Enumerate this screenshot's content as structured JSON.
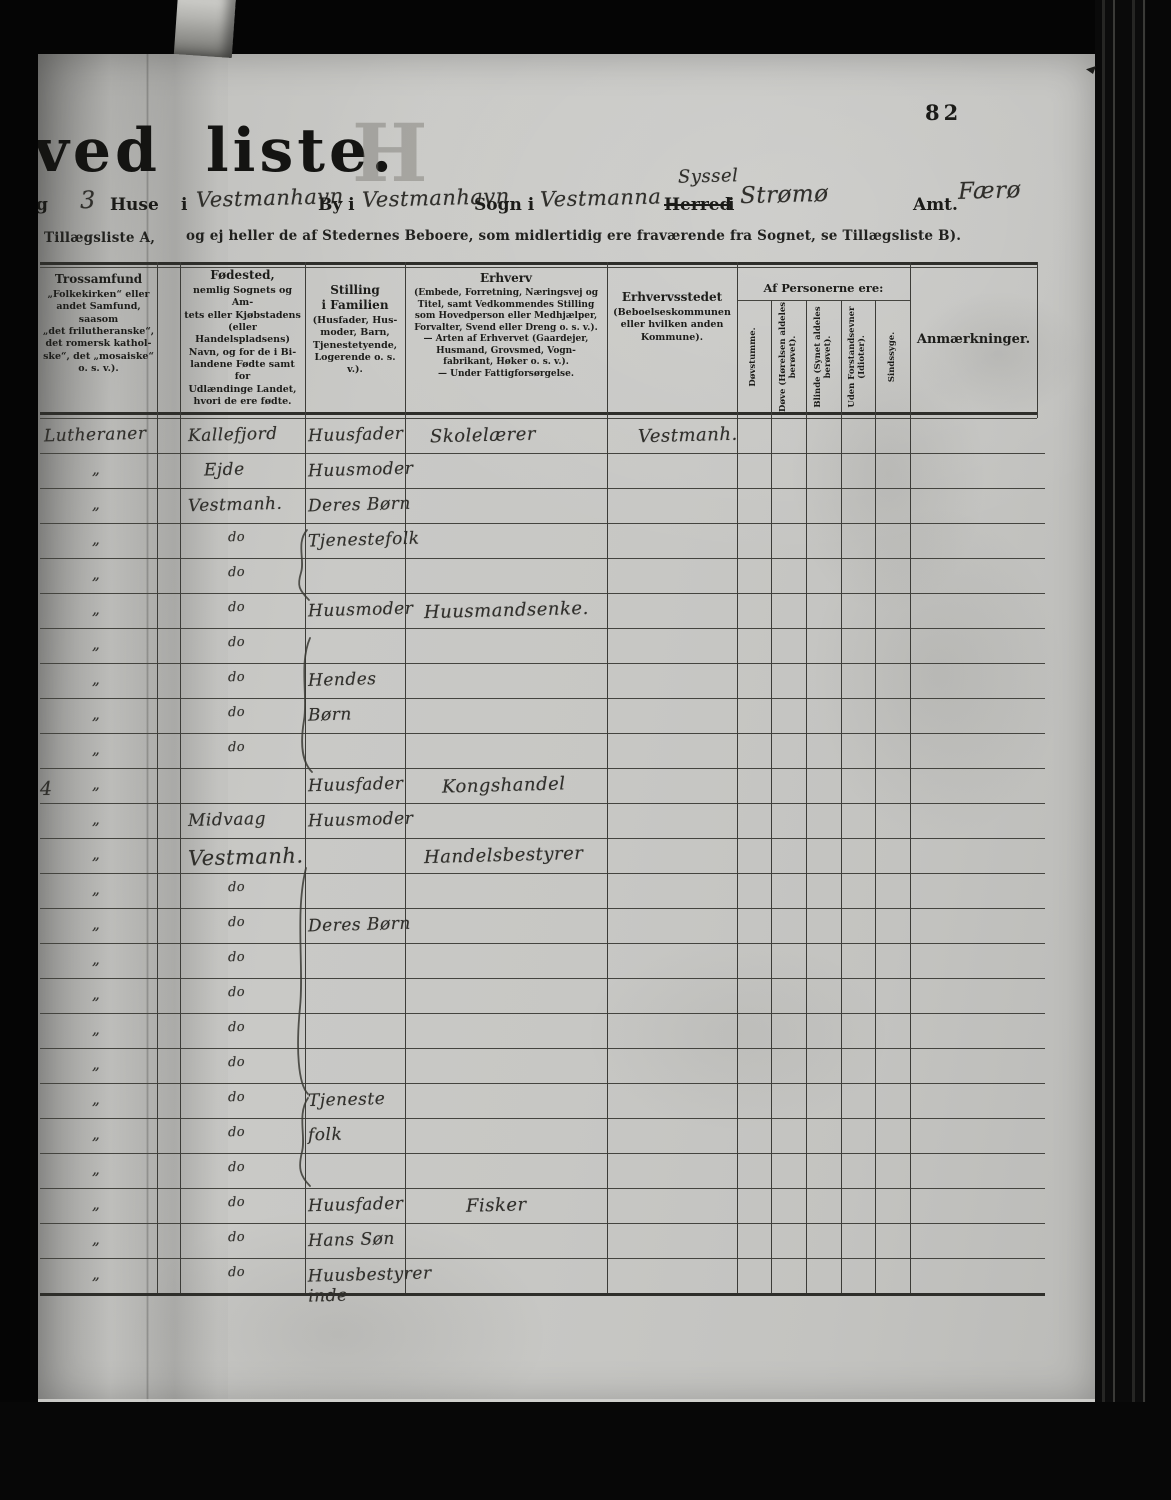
{
  "page": {
    "number": "82"
  },
  "title": {
    "visible_fragment": "ved liste.",
    "ghost_letter": "H"
  },
  "form_line": {
    "fragment": "g",
    "houses_count": "3",
    "houses_label": "Huse",
    "in1": "i",
    "place1": "Vestmanhavn",
    "by_label": "By i",
    "place2": "Vestmanhavn",
    "sogn_label": "Sogn i",
    "place3": "Vestmanna",
    "syssel_handwritten": "Syssel",
    "herred_printed": "Herred",
    "in2": "i",
    "herred_value": "Strømø",
    "amt_label": "Amt.",
    "amt_value": "Færø"
  },
  "note_line": {
    "prefix": "Tillægsliste A,",
    "text": "og ej heller de af Stedernes Beboere, som midlertidig ere fraværende fra Sognet, se Tillægsliste B)."
  },
  "table": {
    "headers": {
      "trossamfund": {
        "title": "Trossamfund",
        "body": "„Folkekirken“ eller\nandet Samfund, saasom\n„det frilutheranske“,\ndet romersk kathol-\nske“, det „mosaiske“\no. s. v.)."
      },
      "fodested": {
        "title": "Fødested,",
        "body": "nemlig Sognets og Am-\ntets eller Kjøbstadens\n(eller Handelspladsens)\nNavn, og for de i Bi-\nlandene Fødte samt for\nUdlændinge Landet,\nhvori de ere fødte."
      },
      "stilling": {
        "title": "Stilling\ni Familien",
        "body": "(Husfader, Hus-\nmoder, Barn,\nTjenestetyende,\nLogerende o. s. v.)."
      },
      "erhverv": {
        "title": "Erhverv",
        "body": "(Embede, Forretning, Næringsvej og\nTitel, samt Vedkommendes Stilling\nsom Hovedperson eller Medhjælper,\nForvalter, Svend eller Dreng o. s. v.).\n— Arten af Erhvervet (Gaardejer,\nHusmand, Grovsmed, Vogn-\nfabrikant, Høker o. s. v.).\n— Under Fattigforsørgelse."
      },
      "erhvervsstedet": {
        "title": "Erhvervsstedet",
        "body": "(Beboelseskommunen\neller hvilken anden\nKommune)."
      },
      "af_personerne": {
        "title": "Af Personerne ere:",
        "columns": [
          "Døvstumme.",
          "Døve (Hørelsen aldeles\nberøvet).",
          "Blinde (Synet aldeles\nberøvet).",
          "Uden Forstandsevner\n(Idioter).",
          "Sindssyge."
        ]
      },
      "anmaerkninger": {
        "title": "Anmærkninger."
      }
    },
    "rows": [
      [
        "Lutheraner",
        "Kallefjord",
        "Huusfader",
        "Skolelærer",
        "Vestmanh."
      ],
      [
        "\"",
        "Ejde",
        "Huusmoder",
        "",
        ""
      ],
      [
        "\"",
        "Vestmanh.",
        "Deres Børn",
        "",
        ""
      ],
      [
        "\"",
        "do",
        "Tjenestefolk",
        "",
        ""
      ],
      [
        "\"",
        "do",
        "",
        "",
        ""
      ],
      [
        "\"",
        "do",
        "Huusmoder",
        "Huusmandsenke.",
        ""
      ],
      [
        "\"",
        "do",
        "",
        "",
        ""
      ],
      [
        "\"",
        "do",
        "Hendes",
        "",
        ""
      ],
      [
        "\"",
        "do",
        "Børn",
        "",
        ""
      ],
      [
        "\"",
        "do",
        "",
        "",
        ""
      ],
      [
        "\"",
        "",
        "Huusfader",
        "Kongshandel",
        ""
      ],
      [
        "\"",
        "Midvaag",
        "Huusmoder",
        "",
        ""
      ],
      [
        "\"",
        "Vestmanh.",
        "",
        "Handelsbestyrer",
        ""
      ],
      [
        "\"",
        "do",
        "",
        "",
        ""
      ],
      [
        "\"",
        "do",
        "Deres Børn",
        "",
        ""
      ],
      [
        "\"",
        "do",
        "",
        "",
        ""
      ],
      [
        "\"",
        "do",
        "",
        "",
        ""
      ],
      [
        "\"",
        "do",
        "",
        "",
        ""
      ],
      [
        "\"",
        "do",
        "",
        "",
        ""
      ],
      [
        "\"",
        "do",
        "Tjeneste",
        "",
        ""
      ],
      [
        "\"",
        "do",
        "folk",
        "",
        ""
      ],
      [
        "\"",
        "do",
        "",
        "",
        ""
      ],
      [
        "\"",
        "do",
        "Huusfader",
        "Fisker",
        ""
      ],
      [
        "\"",
        "do",
        "Hans Søn",
        "",
        ""
      ],
      [
        "\"",
        "do",
        "Huusbestyrer\ninde",
        "",
        ""
      ]
    ],
    "margin_mark": "4"
  }
}
